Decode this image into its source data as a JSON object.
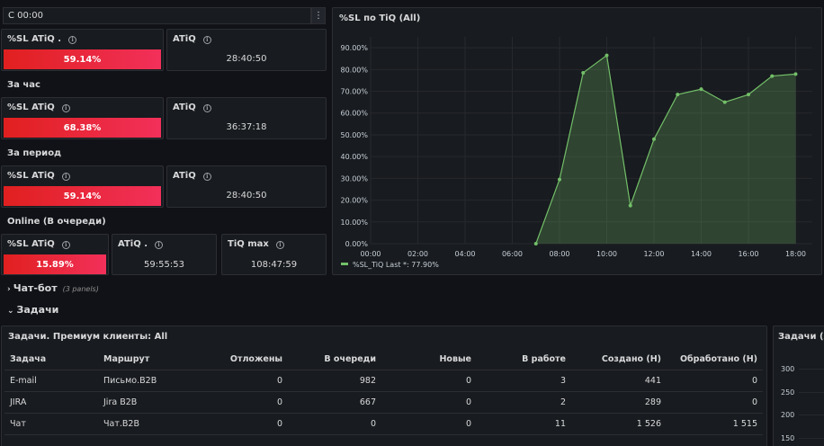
{
  "topbar": {
    "time_label": "С 00:00",
    "menu_icon": "kebab-menu-icon"
  },
  "stats": {
    "row1": {
      "sl_title": "%SL ATiQ .",
      "sl_value": "59.14%",
      "atiq_title": "ATiQ",
      "atiq_value": "28:40:50"
    },
    "hour_label": "За час",
    "row2": {
      "sl_title": "%SL ATiQ",
      "sl_value": "68.38%",
      "atiq_title": "ATiQ",
      "atiq_value": "36:37:18"
    },
    "period_label": "За период",
    "row3": {
      "sl_title": "%SL ATiQ",
      "sl_value": "59.14%",
      "atiq_title": "ATiQ",
      "atiq_value": "28:40:50"
    },
    "online_label": "Online (В очереди)",
    "row4": {
      "sl_title": "%SL ATiQ",
      "sl_value": "15.89%",
      "atiq_title": "ATiQ .",
      "atiq_value": "59:55:53",
      "tiq_title": "TiQ max",
      "tiq_value": "108:47:59"
    }
  },
  "chart_panel": {
    "title": "%SL по TiQ (All)",
    "legend_text": "%SL_TiQ  Last *: 77.90%"
  },
  "chart_data": {
    "type": "area",
    "title": "%SL по TiQ (All)",
    "x": [
      "07:00",
      "08:00",
      "09:00",
      "10:00",
      "11:00",
      "12:00",
      "13:00",
      "14:00",
      "15:00",
      "16:00",
      "17:00",
      "18:00"
    ],
    "series": [
      {
        "name": "%SL_TiQ",
        "values": [
          0,
          29.5,
          78.5,
          86.5,
          17.5,
          48.0,
          68.5,
          71.0,
          65.0,
          68.5,
          77.0,
          77.9
        ]
      }
    ],
    "x_ticks": [
      "00:00",
      "02:00",
      "04:00",
      "06:00",
      "08:00",
      "10:00",
      "12:00",
      "14:00",
      "16:00",
      "18:00"
    ],
    "y_ticks": [
      "0.00%",
      "10.00%",
      "20.00%",
      "30.00%",
      "40.00%",
      "50.00%",
      "60.00%",
      "70.00%",
      "80.00%",
      "90.00%"
    ],
    "ylim": [
      0,
      95
    ],
    "xlim_hours": [
      0,
      18.3
    ],
    "color": "#73bf69",
    "legend": "bottom-left"
  },
  "rows": {
    "chatbot": {
      "title": "Чат-бот",
      "sub": "(3 panels)"
    },
    "tasks": {
      "title": "Задачи"
    }
  },
  "tasks_table": {
    "title": "Задачи. Премиум клиенты: All",
    "columns": [
      "Задача",
      "Маршрут",
      "Отложены",
      "В очереди",
      "Новые",
      "В работе",
      "Создано (Н)",
      "Обработано (Н)"
    ],
    "rows": [
      [
        "E-mail",
        "Письмо.B2B",
        "0",
        "982",
        "0",
        "3",
        "441",
        "0"
      ],
      [
        "JIRA",
        "Jira B2B",
        "0",
        "667",
        "0",
        "2",
        "289",
        "0"
      ],
      [
        "Чат",
        "Чат.B2B",
        "0",
        "0",
        "0",
        "11",
        "1 526",
        "1 515"
      ]
    ]
  },
  "right_panel": {
    "title": "Задачи (All",
    "y_ticks": [
      "300",
      "250",
      "200",
      "150"
    ]
  }
}
